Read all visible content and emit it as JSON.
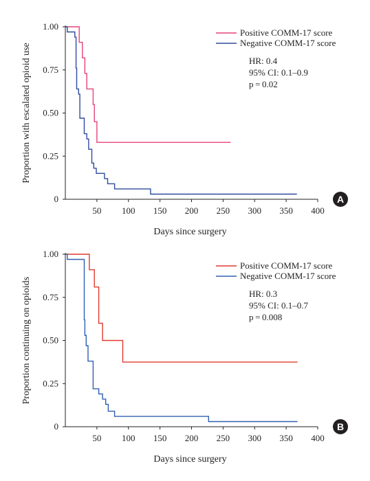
{
  "chart_data": [
    {
      "type": "line",
      "panel_label": "A",
      "xlabel": "Days since surgery",
      "ylabel": "Proportion with escalated opioid use",
      "xlim": [
        0,
        400
      ],
      "ylim": [
        0,
        1
      ],
      "x_ticks": [
        "50",
        "100",
        "150",
        "200",
        "250",
        "300",
        "350",
        "400"
      ],
      "y_ticks": [
        "0",
        "0.25",
        "0.50",
        "0.75",
        "1.00"
      ],
      "legend_position": "top-right",
      "annotations": [
        "HR: 0.4",
        "95% CI: 0.1–0.9",
        "p = 0.02"
      ],
      "series": [
        {
          "name": "Positive COMM-17 score",
          "color": "#e5417a",
          "steps": [
            [
              0,
              1.0
            ],
            [
              22,
              0.91
            ],
            [
              27,
              0.82
            ],
            [
              31,
              0.73
            ],
            [
              34,
              0.64
            ],
            [
              44,
              0.55
            ],
            [
              46,
              0.45
            ],
            [
              50,
              0.33
            ],
            [
              262,
              0.33
            ]
          ]
        },
        {
          "name": "Negative COMM-17 score",
          "color": "#2e4a9e",
          "steps": [
            [
              0,
              1.0
            ],
            [
              3,
              0.97
            ],
            [
              15,
              0.94
            ],
            [
              17,
              0.76
            ],
            [
              18,
              0.64
            ],
            [
              21,
              0.61
            ],
            [
              23,
              0.47
            ],
            [
              30,
              0.38
            ],
            [
              34,
              0.35
            ],
            [
              37,
              0.29
            ],
            [
              42,
              0.21
            ],
            [
              45,
              0.18
            ],
            [
              49,
              0.15
            ],
            [
              62,
              0.12
            ],
            [
              67,
              0.09
            ],
            [
              78,
              0.06
            ],
            [
              135,
              0.03
            ],
            [
              367,
              0.03
            ]
          ]
        }
      ]
    },
    {
      "type": "line",
      "panel_label": "B",
      "xlabel": "Days since surgery",
      "ylabel": "Proportion continuing on opioids",
      "xlim": [
        0,
        400
      ],
      "ylim": [
        0,
        1
      ],
      "x_ticks": [
        "50",
        "100",
        "150",
        "200",
        "250",
        "300",
        "350",
        "400"
      ],
      "y_ticks": [
        "0",
        "0.25",
        "0.50",
        "0.75",
        "1.00"
      ],
      "legend_position": "top-right",
      "annotations": [
        "HR: 0.3",
        "95% CI: 0.1–0.7",
        "p = 0.008"
      ],
      "series": [
        {
          "name": "Positive COMM-17 score",
          "color": "#e2392d",
          "steps": [
            [
              0,
              1.0
            ],
            [
              38,
              0.91
            ],
            [
              46,
              0.81
            ],
            [
              53,
              0.6
            ],
            [
              59,
              0.5
            ],
            [
              91,
              0.375
            ],
            [
              368,
              0.375
            ]
          ]
        },
        {
          "name": "Negative COMM-17 score",
          "color": "#2e5fb0",
          "steps": [
            [
              0,
              1.0
            ],
            [
              3,
              0.97
            ],
            [
              30,
              0.62
            ],
            [
              31,
              0.53
            ],
            [
              33,
              0.47
            ],
            [
              36,
              0.38
            ],
            [
              44,
              0.22
            ],
            [
              53,
              0.19
            ],
            [
              59,
              0.16
            ],
            [
              64,
              0.13
            ],
            [
              68,
              0.09
            ],
            [
              78,
              0.06
            ],
            [
              227,
              0.03
            ],
            [
              368,
              0.03
            ]
          ]
        }
      ]
    }
  ]
}
